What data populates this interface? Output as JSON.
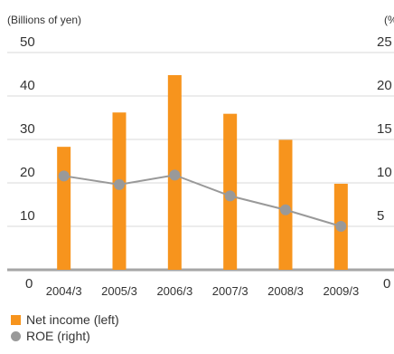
{
  "chart_data": {
    "type": "bar",
    "left_axis_unit": "(Billions of yen)",
    "right_axis_unit": "(%",
    "categories": [
      "2004/3",
      "2005/3",
      "2006/3",
      "2007/3",
      "2008/3",
      "2009/3"
    ],
    "left_ticks": [
      "50",
      "40",
      "30",
      "20",
      "10",
      "0"
    ],
    "right_ticks": [
      "25",
      "20",
      "15",
      "10",
      "5",
      "0"
    ],
    "ylim_left": [
      0,
      50
    ],
    "ylim_right": [
      0,
      25
    ],
    "grid": true,
    "legend_position": "bottom-left",
    "series": [
      {
        "name": "Net income (left)",
        "type": "bar",
        "axis": "left",
        "color": "#f7941d",
        "values": [
          28.3,
          36.2,
          44.8,
          35.9,
          29.9,
          19.8
        ]
      },
      {
        "name": "ROE (right)",
        "type": "line",
        "axis": "right",
        "color": "#999999",
        "values": [
          10.8,
          9.8,
          10.9,
          8.5,
          6.9,
          5.0
        ]
      }
    ]
  }
}
